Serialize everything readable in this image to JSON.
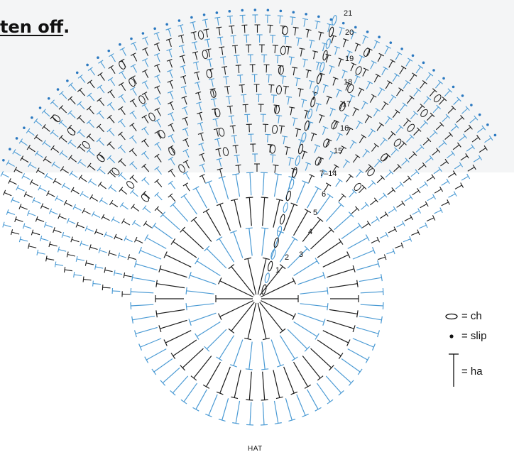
{
  "heading": {
    "partial_text": "ten off",
    "trailing": "."
  },
  "diagram": {
    "label": "HAT",
    "round_labels": [
      "1",
      "2",
      "3",
      "4",
      "5",
      "6",
      "7–14",
      "15",
      "16",
      "17",
      "18",
      "19",
      "20",
      "21"
    ],
    "colors": {
      "odd_rounds": "#1a1a1a",
      "even_rounds": "#4a9ad4",
      "slip_dot": "#2a78c0"
    }
  },
  "legend": {
    "chain_text": "= ch",
    "slip_text": "= slip",
    "hdc_text": "= ha"
  }
}
